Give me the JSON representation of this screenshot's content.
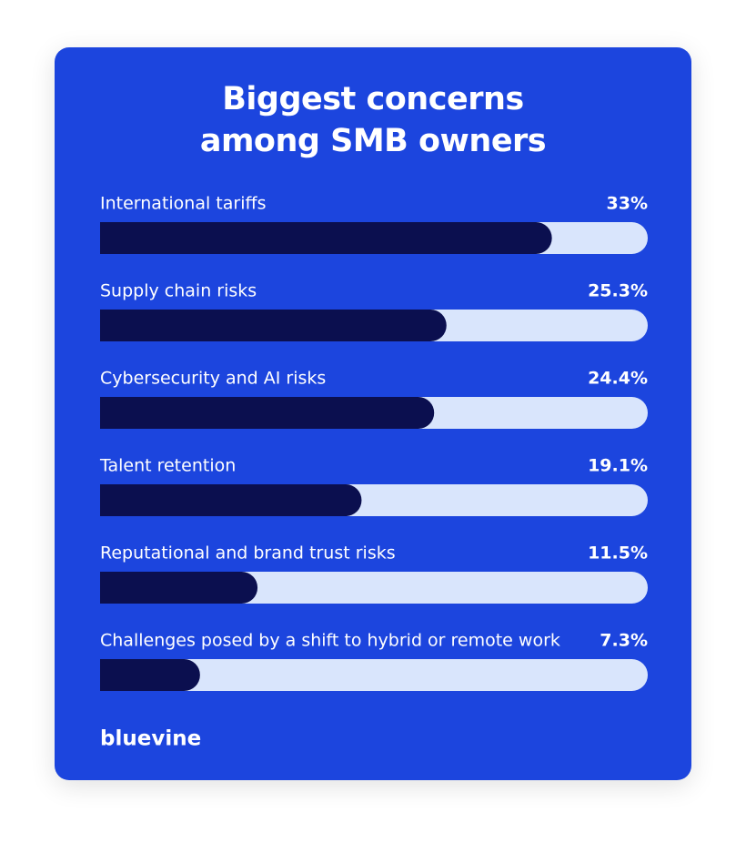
{
  "chart_data": {
    "type": "bar",
    "orientation": "horizontal",
    "title": "Biggest concerns among SMB owners",
    "categories": [
      "International tariffs",
      "Supply chain risks",
      "Cybersecurity and AI risks",
      "Talent retention",
      "Reputational and brand trust risks",
      "Challenges posed by a shift to hybrid or remote work"
    ],
    "values": [
      33,
      25.3,
      24.4,
      19.1,
      11.5,
      7.3
    ],
    "value_labels": [
      "33%",
      "25.3%",
      "24.4%",
      "19.1%",
      "11.5%",
      "7.3%"
    ],
    "color": "#0b0f4f",
    "track_color": "#d9e5fc",
    "background_color": "#1c45de",
    "xlim": [
      0,
      40
    ],
    "logo": "bluevine"
  }
}
